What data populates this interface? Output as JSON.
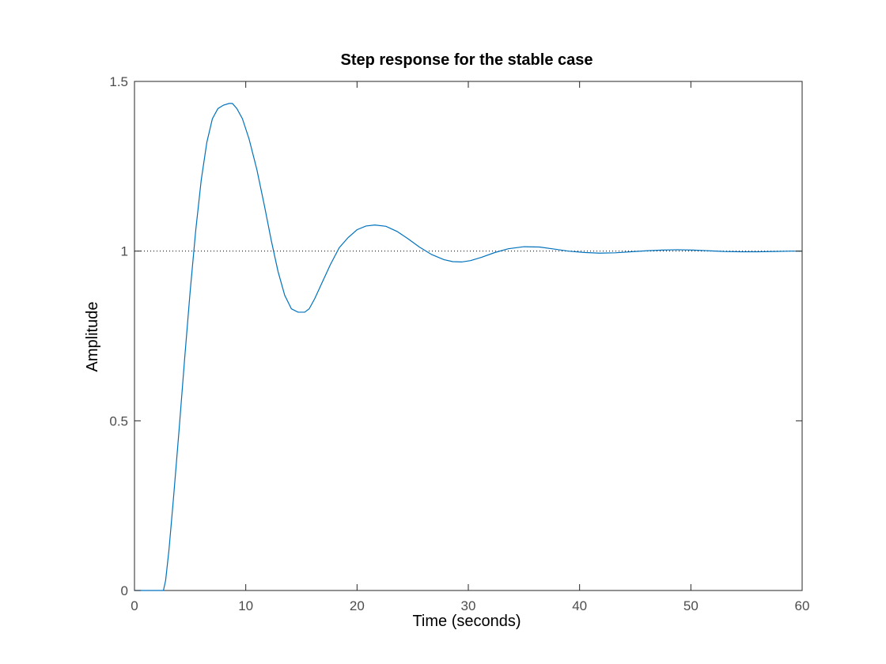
{
  "colors": {
    "series": "#0072bd",
    "reference": "#000000",
    "axis": "#262626",
    "background": "#ffffff"
  },
  "chart_data": {
    "type": "line",
    "title": "Step response for the stable case",
    "xlabel": "Time (seconds)",
    "ylabel": "Amplitude",
    "xlim": [
      0,
      60
    ],
    "ylim": [
      0,
      1.5
    ],
    "xticks": [
      0,
      10,
      20,
      30,
      40,
      50,
      60
    ],
    "yticks": [
      0,
      0.5,
      1,
      1.5
    ],
    "xtick_labels": [
      "0",
      "10",
      "20",
      "30",
      "40",
      "50",
      "60"
    ],
    "ytick_labels": [
      "0",
      "0.5",
      "1",
      "1.5"
    ],
    "grid": false,
    "legend": "none",
    "reference_line": {
      "y": 1,
      "style": "dotted"
    },
    "series": [
      {
        "x": [
          0,
          1.3,
          2.6,
          2.8,
          3.1,
          3.5,
          4.0,
          4.5,
          5.0,
          5.5,
          6.0,
          6.5,
          7.0,
          7.5,
          8.0,
          8.5,
          8.8,
          9.2,
          9.7,
          10.3,
          11.0,
          11.7,
          12.3,
          12.9,
          13.5,
          14.1,
          14.7,
          15.3,
          15.7,
          16.2,
          16.9,
          17.6,
          18.4,
          19.2,
          20.0,
          20.8,
          21.6,
          22.6,
          23.6,
          24.6,
          25.6,
          26.7,
          27.8,
          28.6,
          29.4,
          30.2,
          31.2,
          32.4,
          33.6,
          35.0,
          36.4,
          37.7,
          39.0,
          40.4,
          41.8,
          43.2,
          44.6,
          46.0,
          47.4,
          48.8,
          50.2,
          51.6,
          53.0,
          54.5,
          56.0,
          57.5,
          59.0,
          60.0
        ],
        "y": [
          0,
          0,
          0,
          0.03,
          0.12,
          0.27,
          0.47,
          0.68,
          0.88,
          1.06,
          1.21,
          1.32,
          1.39,
          1.42,
          1.43,
          1.435,
          1.435,
          1.42,
          1.39,
          1.33,
          1.24,
          1.13,
          1.03,
          0.94,
          0.87,
          0.83,
          0.82,
          0.82,
          0.83,
          0.86,
          0.91,
          0.96,
          1.01,
          1.04,
          1.063,
          1.074,
          1.077,
          1.073,
          1.058,
          1.036,
          1.012,
          0.99,
          0.975,
          0.969,
          0.968,
          0.972,
          0.982,
          0.996,
          1.007,
          1.013,
          1.012,
          1.006,
          1.0,
          0.996,
          0.994,
          0.995,
          0.998,
          1.001,
          1.003,
          1.004,
          1.003,
          1.001,
          0.999,
          0.998,
          0.998,
          0.999,
          1.0,
          1.0
        ]
      }
    ]
  }
}
